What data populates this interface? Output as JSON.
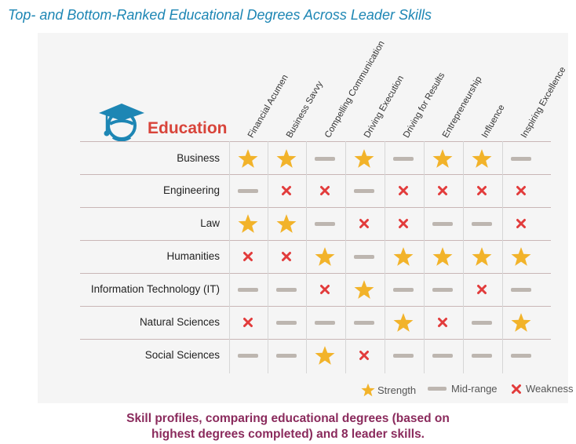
{
  "title": "Top- and Bottom-Ranked Educational Degrees Across Leader Skills",
  "header": {
    "education_label": "Education",
    "icon": "graduation-cap-icon"
  },
  "colors": {
    "strength": "#f2b32a",
    "midrange": "#bdb6b0",
    "weakness": "#e23b3b",
    "title": "#1d86b4",
    "education": "#d8443a",
    "caption": "#8a2a5c"
  },
  "chart_data": {
    "type": "table",
    "columns": [
      "Financial Acumen",
      "Business Savvy",
      "Compelling Communication",
      "Driving Execution",
      "Driving for Results",
      "Entrepreneurship",
      "Influence",
      "Inspiring Excellence"
    ],
    "rows": [
      {
        "label": "Business",
        "values": [
          "strength",
          "strength",
          "mid",
          "strength",
          "mid",
          "strength",
          "strength",
          "mid"
        ]
      },
      {
        "label": "Engineering",
        "values": [
          "mid",
          "weakness",
          "weakness",
          "mid",
          "weakness",
          "weakness",
          "weakness",
          "weakness"
        ]
      },
      {
        "label": "Law",
        "values": [
          "strength",
          "strength",
          "mid",
          "weakness",
          "weakness",
          "mid",
          "mid",
          "weakness"
        ]
      },
      {
        "label": "Humanities",
        "values": [
          "weakness",
          "weakness",
          "strength",
          "mid",
          "strength",
          "strength",
          "strength",
          "strength"
        ]
      },
      {
        "label": "Information Technology (IT)",
        "values": [
          "mid",
          "mid",
          "weakness",
          "strength",
          "mid",
          "mid",
          "weakness",
          "mid"
        ]
      },
      {
        "label": "Natural Sciences",
        "values": [
          "weakness",
          "mid",
          "mid",
          "mid",
          "strength",
          "weakness",
          "mid",
          "strength"
        ]
      },
      {
        "label": "Social Sciences",
        "values": [
          "mid",
          "mid",
          "strength",
          "weakness",
          "mid",
          "mid",
          "mid",
          "mid"
        ]
      }
    ],
    "legend": {
      "strength": "Strength",
      "midrange": "Mid-range",
      "weakness": "Weakness"
    }
  },
  "caption": {
    "line1": "Skill profiles, comparing educational degrees (based on",
    "line2": "highest degrees completed) and 8 leader skills."
  }
}
